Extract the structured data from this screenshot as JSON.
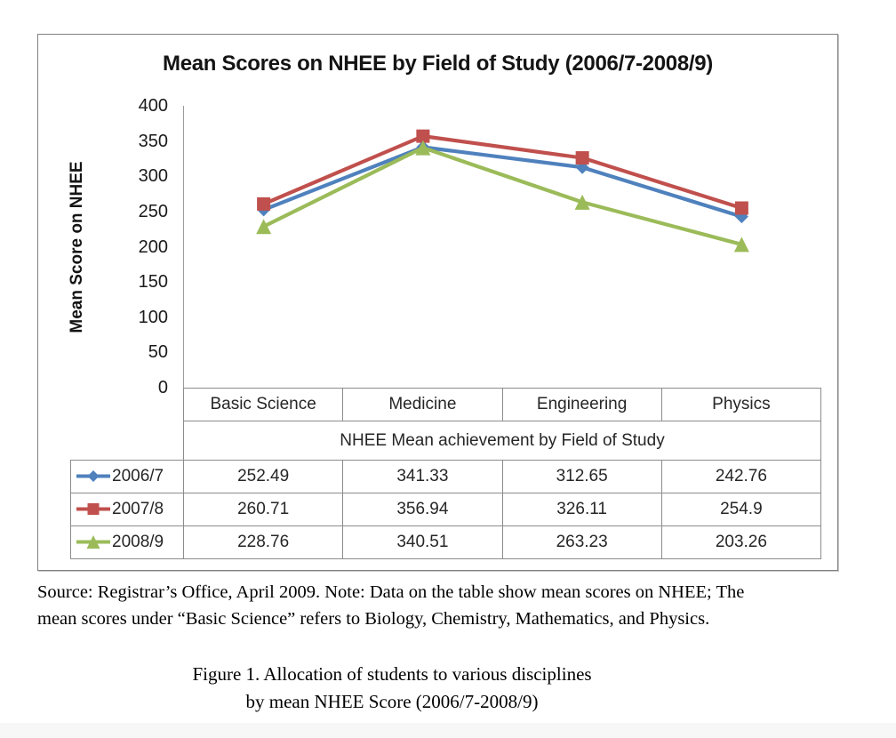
{
  "chart_data": {
    "type": "line",
    "title": "Mean Scores on NHEE by Field of Study (2006/7-2008/9)",
    "categories": [
      "Basic Science",
      "Medicine",
      "Engineering",
      "Physics"
    ],
    "series": [
      {
        "name": "2006/7",
        "marker": "diamond",
        "color": "#4F81BD",
        "values": [
          252.49,
          341.33,
          312.65,
          242.76
        ]
      },
      {
        "name": "2007/8",
        "marker": "square",
        "color": "#C0504D",
        "values": [
          260.71,
          356.94,
          326.11,
          254.9
        ]
      },
      {
        "name": "2008/9",
        "marker": "triangle",
        "color": "#9BBB59",
        "values": [
          228.76,
          340.51,
          263.23,
          203.26
        ]
      }
    ],
    "xlabel": "NHEE Mean achievement by Field of Study",
    "ylabel": "Mean Score on NHEE",
    "ylim": [
      0,
      400
    ],
    "yticks": [
      0,
      50,
      100,
      150,
      200,
      250,
      300,
      350,
      400
    ],
    "grid": false,
    "legend_position": "data-table-left",
    "data_table_shown": true
  },
  "notes": {
    "line1": "Source: Registrar’s Office, April 2009. Note: Data on the table show mean scores on NHEE; The",
    "line2": "mean scores under “Basic Science” refers to Biology, Chemistry, Mathematics, and Physics."
  },
  "caption": {
    "line1": "Figure 1. Allocation of students to various disciplines",
    "line2": "by mean NHEE Score (2006/7-2008/9)"
  }
}
